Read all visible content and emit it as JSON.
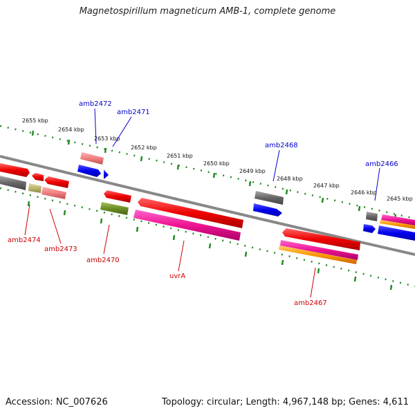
{
  "title": "Magnetospirillum magneticum AMB-1, complete genome",
  "footer": {
    "accession": "Accession: NC_007626",
    "summary": "Topology: circular; Length: 4,967,148 bp; Genes: 4,611"
  },
  "colors": {
    "backbone": "#888888",
    "ticks": "#228b22",
    "label_top": "#0000cc",
    "label_bottom": "#cc0000",
    "scale_text": "#111111"
  },
  "scale_labels": [
    "2655 kbp",
    "2654 kbp",
    "2653 kbp",
    "2652 kbp",
    "2651 kbp",
    "2650 kbp",
    "2649 kbp",
    "2648 kbp",
    "2647 kbp",
    "2646 kbp",
    "2645 kbp"
  ],
  "gene_labels_top": [
    "amb2472",
    "amb2471",
    "amb2468",
    "amb2466"
  ],
  "gene_labels_bottom": [
    "amb2474",
    "amb2473",
    "amb2470",
    "uvrA",
    "amb2467"
  ]
}
